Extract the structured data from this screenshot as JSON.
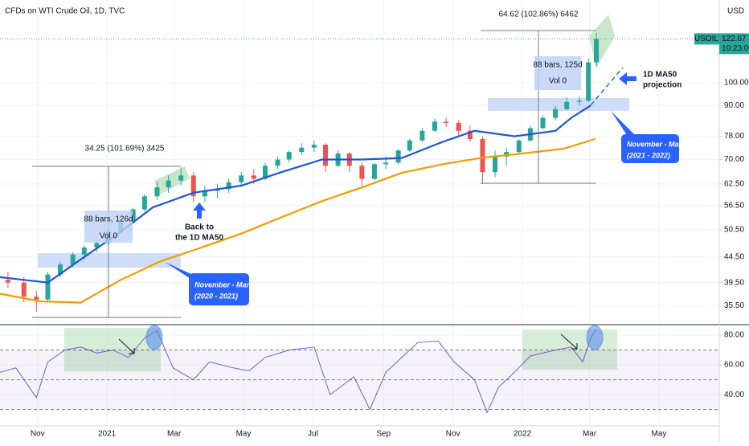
{
  "chart_data": [
    {
      "type": "candlestick",
      "title": "CFDs on WTI Crude Oil, 1D, TVC",
      "symbol": "USOIL",
      "last_price": 122.67,
      "countdown": "10:23:09",
      "currency": "USD",
      "log_scale": true,
      "grid": true,
      "up_color": "#26a69a",
      "down_color": "#ef5350",
      "xlim": [
        0,
        632
      ],
      "ylim": [
        32.6,
        147
      ],
      "yticks": [
        {
          "value": 100,
          "label": "100.00"
        },
        {
          "value": 90,
          "label": "90.00"
        },
        {
          "value": 78,
          "label": "78.00"
        },
        {
          "value": 70,
          "label": "70.00"
        },
        {
          "value": 62.5,
          "label": "62.50"
        },
        {
          "value": 56.5,
          "label": "56.50"
        },
        {
          "value": 50.5,
          "label": "50.50"
        },
        {
          "value": 44.5,
          "label": "44.50"
        },
        {
          "value": 39.5,
          "label": "39.50"
        },
        {
          "value": 35.5,
          "label": "35.50"
        }
      ],
      "x": [
        7,
        21,
        32,
        42,
        53,
        64,
        74,
        85,
        95,
        106,
        117,
        127,
        138,
        148,
        159,
        170,
        180,
        191,
        201,
        212,
        223,
        233,
        244,
        254,
        265,
        276,
        286,
        297,
        307,
        318,
        329,
        339,
        350,
        360,
        371,
        382,
        392,
        403,
        413,
        424,
        435,
        445,
        456,
        466,
        477,
        488,
        498,
        509,
        517,
        524
      ],
      "open": [
        40,
        39.5,
        37,
        36.5,
        41,
        43,
        45,
        46.5,
        47.5,
        50,
        52.5,
        55.5,
        59,
        61.5,
        63.5,
        65,
        59,
        60.5,
        61,
        63,
        65,
        64,
        68,
        70,
        72.5,
        74,
        75,
        68,
        72,
        68,
        64,
        68.5,
        69,
        73,
        76.5,
        80,
        83.5,
        83,
        80,
        77,
        66,
        71,
        72.5,
        76.5,
        81,
        85,
        88.5,
        91.5,
        92,
        110
      ],
      "high": [
        41.5,
        40.5,
        38,
        41.5,
        43.5,
        45.5,
        47,
        48.5,
        50.5,
        53,
        56,
        59.5,
        63,
        65,
        67.5,
        66,
        62,
        62.5,
        64,
        66,
        67,
        69,
        71,
        73,
        75.5,
        76.5,
        75.5,
        73,
        72.5,
        69,
        69,
        71,
        73.5,
        77,
        81,
        84.5,
        85,
        84,
        82,
        78,
        73,
        74,
        77,
        82,
        86,
        90,
        93.5,
        94,
        112,
        126
      ],
      "low": [
        38.5,
        36,
        34.5,
        36,
        40.5,
        42.5,
        44,
        45.5,
        47,
        49.5,
        52,
        55,
        58,
        60,
        62,
        57.5,
        57.5,
        58.5,
        60,
        62,
        62.5,
        63.5,
        67,
        69,
        71.5,
        72.5,
        66,
        67.5,
        66,
        62,
        63.5,
        67,
        68.5,
        72.5,
        76,
        79.5,
        81.5,
        78,
        76,
        62.5,
        64.5,
        68,
        72,
        76,
        80.5,
        84,
        88,
        90,
        91.5,
        108
      ],
      "close": [
        39.5,
        37,
        36.5,
        41,
        43,
        45,
        46.5,
        47.5,
        50,
        52.5,
        55.5,
        59,
        61.5,
        63.5,
        65,
        59,
        60.5,
        61,
        63,
        65,
        64,
        68,
        70,
        72.5,
        74,
        75,
        68,
        72,
        68,
        64,
        68.5,
        69,
        73,
        76.5,
        80,
        83.5,
        83,
        80,
        77,
        66,
        71,
        72.5,
        76.5,
        81,
        85,
        88.5,
        91.5,
        92,
        110,
        122.67
      ],
      "overlays": [
        {
          "color": "#1e56d9",
          "x": [
            0,
            21,
            42,
            71,
            106,
            134,
            170,
            212,
            247,
            283,
            318,
            353,
            389,
            417,
            452,
            488,
            502,
            519
          ],
          "values": [
            40.5,
            40,
            39.5,
            44,
            50,
            56,
            60,
            62,
            66,
            70,
            70,
            70.5,
            76,
            80,
            78,
            80,
            85,
            90
          ]
        },
        {
          "color": "#f59b00",
          "x": [
            0,
            35,
            71,
            106,
            141,
            177,
            212,
            247,
            283,
            318,
            353,
            389,
            424,
            459,
            495,
            523
          ],
          "values": [
            37.5,
            36.2,
            36,
            40,
            43.6,
            46.5,
            49.6,
            53.5,
            57.7,
            61.5,
            65.8,
            68.5,
            70.6,
            72,
            73.6,
            77
          ]
        }
      ],
      "annotations": {
        "left_measure": "34.25 (101.69%) 3425",
        "left_range": "88 bars, 126d",
        "left_volume": "Vol 0",
        "back_to": [
          "Back to",
          "the 1D MA50"
        ],
        "left_callout": [
          "November - March",
          "(2020 - 2021)"
        ],
        "right_measure": "64.62 (102.86%) 6462",
        "right_range": "88 bars, 125d",
        "right_volume": "Vol 0",
        "projection": [
          "1D MA50",
          "projection"
        ],
        "right_callout": [
          "November - March",
          "(2021 - 2022)"
        ]
      }
    },
    {
      "type": "line",
      "color": "#7e57c2",
      "grid": true,
      "xlim": [
        0,
        632
      ],
      "ylim": [
        19,
        86.5
      ],
      "xticks": [
        {
          "value": 33,
          "label": "Nov"
        },
        {
          "value": 94,
          "label": "2021"
        },
        {
          "value": 153,
          "label": "Mar"
        },
        {
          "value": 214,
          "label": "May"
        },
        {
          "value": 275,
          "label": "Jul"
        },
        {
          "value": 337,
          "label": "Sep"
        },
        {
          "value": 398,
          "label": "Nov"
        },
        {
          "value": 459,
          "label": "2022"
        },
        {
          "value": 518,
          "label": "Mar"
        },
        {
          "value": 579,
          "label": "May"
        }
      ],
      "yticks": [
        {
          "value": 80,
          "label": "80.00"
        },
        {
          "value": 60,
          "label": "60.00"
        },
        {
          "value": 40,
          "label": "40.00"
        }
      ],
      "hlines": [
        70,
        50,
        30
      ],
      "x": [
        0,
        14,
        32,
        42,
        57,
        71,
        85,
        99,
        113,
        127,
        138,
        152,
        170,
        184,
        205,
        219,
        233,
        254,
        276,
        290,
        311,
        325,
        339,
        353,
        367,
        385,
        399,
        417,
        428,
        438,
        452,
        466,
        488,
        502,
        512,
        519,
        524
      ],
      "values": [
        55,
        58,
        38,
        62,
        70,
        72,
        68,
        70,
        65,
        78,
        83,
        58,
        50,
        62,
        58,
        56,
        65,
        70,
        72,
        40,
        52,
        30,
        55,
        65,
        75,
        76,
        62,
        50,
        28,
        45,
        55,
        66,
        70,
        72,
        62,
        78,
        84
      ]
    }
  ]
}
